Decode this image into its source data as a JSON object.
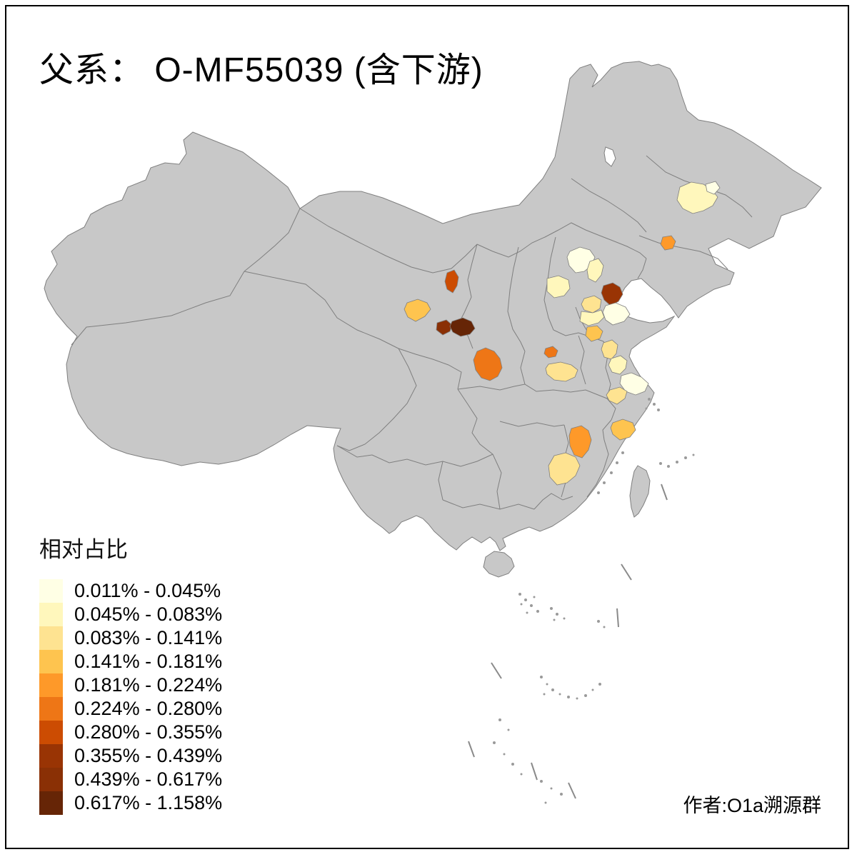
{
  "title": "父系： O-MF55039 (含下游)",
  "attribution": "作者:O1a溯源群",
  "legend": {
    "title": "相对占比",
    "classes": [
      {
        "label": "0.011% - 0.045%",
        "color": "#FFFFE5"
      },
      {
        "label": "0.045% - 0.083%",
        "color": "#FFF7BC"
      },
      {
        "label": "0.083% - 0.141%",
        "color": "#FEE391"
      },
      {
        "label": "0.141% - 0.181%",
        "color": "#FEC44F"
      },
      {
        "label": "0.181% - 0.224%",
        "color": "#FE9929"
      },
      {
        "label": "0.224% - 0.280%",
        "color": "#EE7616"
      },
      {
        "label": "0.280% - 0.355%",
        "color": "#CC4C02"
      },
      {
        "label": "0.355% - 0.439%",
        "color": "#993404"
      },
      {
        "label": "0.439% - 0.617%",
        "color": "#8A3005"
      },
      {
        "label": "0.617% - 1.158%",
        "color": "#662506"
      }
    ]
  },
  "map": {
    "land_fill": "#C8C8C8",
    "border_color": "#7F7F7F",
    "background": "#FFFFFF",
    "regions": [
      {
        "id": "heilongjiang-harbin",
        "class": 2
      },
      {
        "id": "heilongjiang-northeast",
        "class": 1
      },
      {
        "id": "liaoning-central",
        "class": 5
      },
      {
        "id": "beijing",
        "class": 1
      },
      {
        "id": "tianjin",
        "class": 2
      },
      {
        "id": "hebei-west",
        "class": 2
      },
      {
        "id": "shandong-north-coast",
        "class": 8
      },
      {
        "id": "shandong-east",
        "class": 1
      },
      {
        "id": "shandong-jinan-north",
        "class": 3
      },
      {
        "id": "shandong-jinan-south",
        "class": 2
      },
      {
        "id": "shandong-south",
        "class": 4
      },
      {
        "id": "henan-north",
        "class": 6
      },
      {
        "id": "henan-south",
        "class": 3
      },
      {
        "id": "gansu-north",
        "class": 7
      },
      {
        "id": "gansu-west",
        "class": 4
      },
      {
        "id": "gansu-lanzhou-west",
        "class": 9
      },
      {
        "id": "gansu-lanzhou-east",
        "class": 10
      },
      {
        "id": "shaanxi-xian",
        "class": 6
      },
      {
        "id": "anhui-north",
        "class": 3
      },
      {
        "id": "jiangsu-central",
        "class": 2
      },
      {
        "id": "jiangsu-south",
        "class": 1
      },
      {
        "id": "jiangsu-southwest",
        "class": 3
      },
      {
        "id": "zhejiang-north",
        "class": 4
      },
      {
        "id": "jiangxi-northwest",
        "class": 5
      },
      {
        "id": "hunan-east",
        "class": 3
      }
    ]
  }
}
